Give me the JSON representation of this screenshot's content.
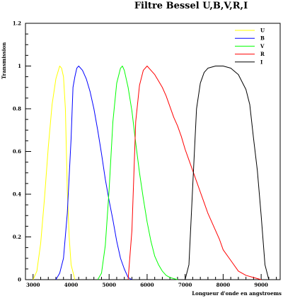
{
  "chart_data": {
    "type": "line",
    "title": "Filtre Bessel U,B,V,R,I",
    "xlabel": "Longueur d'onde en angstroems",
    "ylabel": "Transmission",
    "xlim": [
      2800,
      9500
    ],
    "ylim": [
      0,
      1.2
    ],
    "x_ticks": [
      3000,
      4000,
      5000,
      6000,
      7000,
      8000,
      9000
    ],
    "y_ticks": [
      0,
      0.2,
      0.4,
      0.6,
      0.8,
      1,
      1.2
    ],
    "x_tick_labels": [
      "3000",
      "4000",
      "5000",
      "6000",
      "7000",
      "8000",
      "9000"
    ],
    "y_tick_labels": [
      "0",
      "0.2",
      "0.4",
      "0.6",
      "0.8",
      "1",
      "1.2"
    ],
    "grid": false,
    "legend_position": "top-right",
    "series": [
      {
        "name": "U",
        "color": "#ffff00",
        "points": [
          [
            3000,
            0.0
          ],
          [
            3100,
            0.04
          ],
          [
            3200,
            0.17
          ],
          [
            3300,
            0.38
          ],
          [
            3400,
            0.62
          ],
          [
            3500,
            0.82
          ],
          [
            3600,
            0.94
          ],
          [
            3700,
            1.0
          ],
          [
            3750,
            0.99
          ],
          [
            3800,
            0.95
          ],
          [
            3850,
            0.8
          ],
          [
            3900,
            0.42
          ],
          [
            3950,
            0.2
          ],
          [
            4000,
            0.07
          ],
          [
            4100,
            0.0
          ]
        ]
      },
      {
        "name": "B",
        "color": "#0000ff",
        "points": [
          [
            3600,
            0.0
          ],
          [
            3700,
            0.03
          ],
          [
            3800,
            0.1
          ],
          [
            3900,
            0.31
          ],
          [
            4000,
            0.66
          ],
          [
            4050,
            0.9
          ],
          [
            4100,
            0.95
          ],
          [
            4150,
            0.99
          ],
          [
            4200,
            1.0
          ],
          [
            4300,
            0.98
          ],
          [
            4400,
            0.94
          ],
          [
            4500,
            0.88
          ],
          [
            4600,
            0.8
          ],
          [
            4700,
            0.7
          ],
          [
            4800,
            0.59
          ],
          [
            4900,
            0.47
          ],
          [
            5000,
            0.37
          ],
          [
            5100,
            0.28
          ],
          [
            5200,
            0.18
          ],
          [
            5300,
            0.1
          ],
          [
            5400,
            0.05
          ],
          [
            5500,
            0.01
          ],
          [
            5600,
            0.0
          ]
        ]
      },
      {
        "name": "V",
        "color": "#00ff00",
        "points": [
          [
            4700,
            0.0
          ],
          [
            4800,
            0.03
          ],
          [
            4900,
            0.16
          ],
          [
            5000,
            0.42
          ],
          [
            5100,
            0.74
          ],
          [
            5200,
            0.92
          ],
          [
            5300,
            0.99
          ],
          [
            5350,
            1.0
          ],
          [
            5400,
            0.98
          ],
          [
            5500,
            0.9
          ],
          [
            5600,
            0.79
          ],
          [
            5700,
            0.64
          ],
          [
            5800,
            0.5
          ],
          [
            5900,
            0.38
          ],
          [
            6000,
            0.27
          ],
          [
            6100,
            0.18
          ],
          [
            6200,
            0.11
          ],
          [
            6300,
            0.07
          ],
          [
            6400,
            0.04
          ],
          [
            6500,
            0.02
          ],
          [
            6600,
            0.01
          ],
          [
            6800,
            0.0
          ]
        ]
      },
      {
        "name": "R",
        "color": "#ff0000",
        "points": [
          [
            5500,
            0.0
          ],
          [
            5600,
            0.23
          ],
          [
            5700,
            0.74
          ],
          [
            5800,
            0.91
          ],
          [
            5900,
            0.98
          ],
          [
            6000,
            1.0
          ],
          [
            6100,
            0.98
          ],
          [
            6200,
            0.96
          ],
          [
            6300,
            0.93
          ],
          [
            6400,
            0.9
          ],
          [
            6500,
            0.86
          ],
          [
            6600,
            0.81
          ],
          [
            6700,
            0.76
          ],
          [
            6800,
            0.72
          ],
          [
            6900,
            0.67
          ],
          [
            7000,
            0.61
          ],
          [
            7100,
            0.56
          ],
          [
            7200,
            0.51
          ],
          [
            7300,
            0.46
          ],
          [
            7400,
            0.41
          ],
          [
            7500,
            0.36
          ],
          [
            7600,
            0.31
          ],
          [
            7700,
            0.27
          ],
          [
            7800,
            0.23
          ],
          [
            7900,
            0.19
          ],
          [
            8000,
            0.14
          ],
          [
            8200,
            0.09
          ],
          [
            8400,
            0.04
          ],
          [
            8600,
            0.02
          ],
          [
            8800,
            0.01
          ],
          [
            9000,
            0.0
          ]
        ]
      },
      {
        "name": "I",
        "color": "#000000",
        "points": [
          [
            7000,
            0.0
          ],
          [
            7100,
            0.07
          ],
          [
            7200,
            0.44
          ],
          [
            7300,
            0.8
          ],
          [
            7400,
            0.92
          ],
          [
            7500,
            0.97
          ],
          [
            7600,
            0.99
          ],
          [
            7800,
            1.0
          ],
          [
            8000,
            1.0
          ],
          [
            8200,
            0.99
          ],
          [
            8400,
            0.96
          ],
          [
            8600,
            0.89
          ],
          [
            8700,
            0.82
          ],
          [
            8800,
            0.66
          ],
          [
            8900,
            0.51
          ],
          [
            9000,
            0.3
          ],
          [
            9100,
            0.07
          ],
          [
            9200,
            0.0
          ]
        ]
      }
    ]
  }
}
